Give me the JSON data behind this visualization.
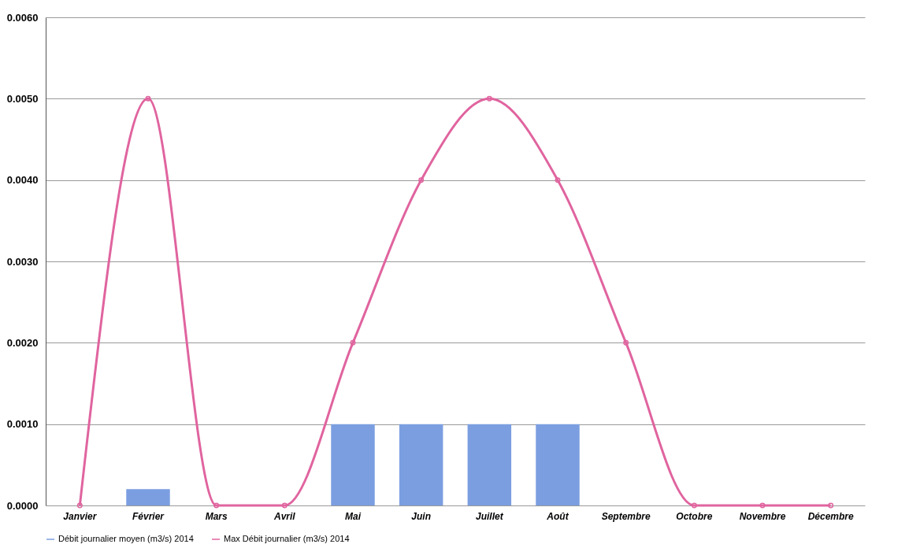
{
  "chart_data": {
    "type": "bar",
    "categories": [
      "Janvier",
      "Février",
      "Mars",
      "Avril",
      "Mai",
      "Juin",
      "Juillet",
      "Août",
      "Septembre",
      "Octobre",
      "Novembre",
      "Décembre"
    ],
    "series": [
      {
        "name": "Débit journalier moyen (m3/s) 2014",
        "color": "#7b9ee0",
        "values": [
          0,
          0.0002,
          0,
          0,
          0.001,
          0.001,
          0.001,
          0.001,
          0,
          0,
          0,
          0
        ]
      },
      {
        "name": "Max Débit journalier (m3/s) 2014",
        "type": "line",
        "color": "#e0649f",
        "values": [
          0,
          0.005,
          0,
          0,
          0.002,
          0.004,
          0.005,
          0.004,
          0.002,
          0,
          0,
          0
        ]
      }
    ],
    "ylim": [
      0,
      0.006
    ],
    "yticks": [
      {
        "value": 0,
        "label": "0.0000"
      },
      {
        "value": 0.001,
        "label": "0.0010"
      },
      {
        "value": 0.002,
        "label": "0.0020"
      },
      {
        "value": 0.003,
        "label": "0.0030"
      },
      {
        "value": 0.004,
        "label": "0.0040"
      },
      {
        "value": 0.005,
        "label": "0.0050"
      },
      {
        "value": 0.006,
        "label": "0.0060"
      }
    ],
    "grid": "y",
    "legend": "bottom",
    "marker": "circle",
    "line_style": "solid"
  }
}
